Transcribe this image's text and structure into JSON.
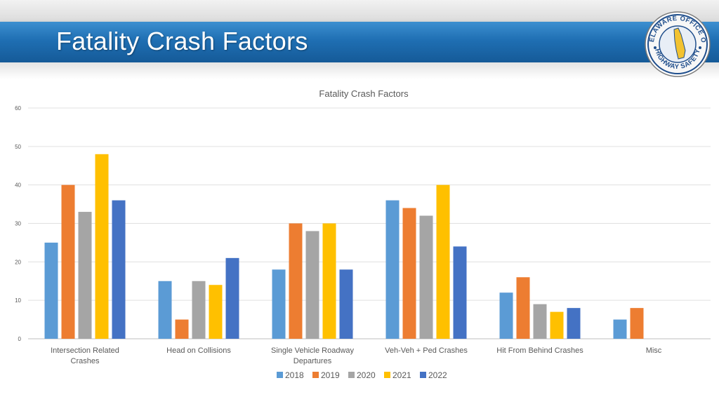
{
  "slide": {
    "title": "Fatality Crash Factors",
    "seal_text": "DELAWARE OFFICE OF HIGHWAY SAFETY"
  },
  "chart_data": {
    "type": "bar",
    "title": "Fatality Crash Factors",
    "xlabel": "",
    "ylabel": "",
    "ylim": [
      0,
      60
    ],
    "yticks": [
      0,
      10,
      20,
      30,
      40,
      50,
      60
    ],
    "grid": true,
    "legend_position": "bottom",
    "categories": [
      "Intersection Related Crashes",
      "Head on Collisions",
      "Single Vehicle Roadway Departures",
      "Veh-Veh + Ped Crashes",
      "Hit From Behind Crashes",
      "Misc"
    ],
    "series": [
      {
        "name": "2018",
        "color": "#5b9bd5",
        "values": [
          25,
          15,
          18,
          36,
          12,
          5
        ]
      },
      {
        "name": "2019",
        "color": "#ed7d31",
        "values": [
          40,
          5,
          30,
          34,
          16,
          8
        ]
      },
      {
        "name": "2020",
        "color": "#a5a5a5",
        "values": [
          33,
          15,
          28,
          32,
          9,
          null
        ]
      },
      {
        "name": "2021",
        "color": "#ffc000",
        "values": [
          48,
          14,
          30,
          40,
          7,
          null
        ]
      },
      {
        "name": "2022",
        "color": "#4472c4",
        "values": [
          36,
          21,
          18,
          24,
          8,
          null
        ]
      }
    ]
  }
}
